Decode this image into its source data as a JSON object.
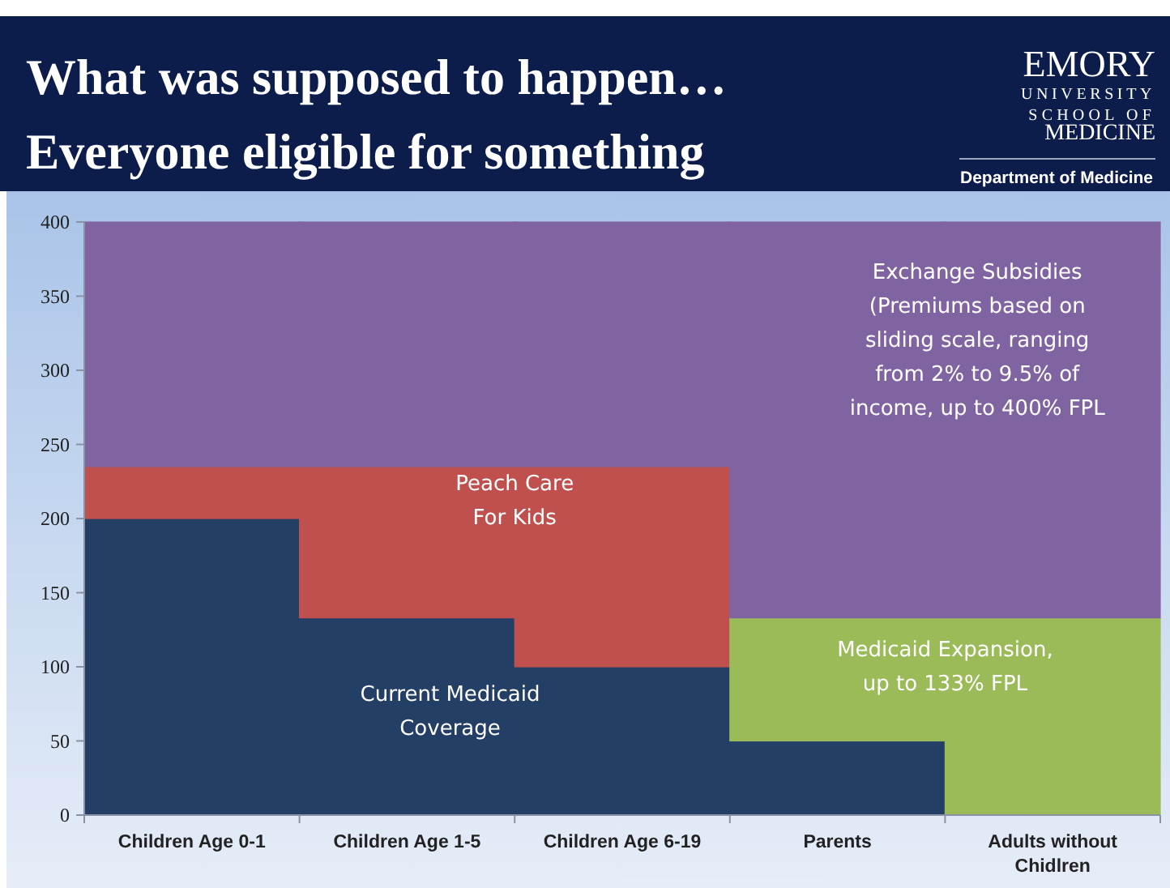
{
  "chart_data": {
    "type": "bar",
    "stacked": true,
    "title": "What was supposed to happen…",
    "subtitle": "Everyone eligible for something",
    "annotations": [
      "EMORY",
      "UNIVERSITY",
      "SCHOOL OF",
      "MEDICINE",
      "Department of Medicine"
    ],
    "categories": [
      "Children Age 0-1",
      "Children Age 1-5",
      "Children Age 6-19",
      "Parents",
      "Adults without Chidlren"
    ],
    "series": [
      {
        "name": "Current Medicaid Coverage",
        "color": "#243f66",
        "values": [
          200,
          133,
          100,
          50,
          0
        ]
      },
      {
        "name": "Peach Care For Kids",
        "color": "#c0504d",
        "values": [
          35,
          102,
          135,
          null,
          null
        ]
      },
      {
        "name": "Medicaid Expansion, up to 133% FPL",
        "color": "#9bbb59",
        "values": [
          null,
          null,
          null,
          83,
          133
        ]
      },
      {
        "name": "Exchange Subsidies (Premiums based on sliding scale, ranging from 2% to 9.5% of income, up to 400% FPL",
        "color": "#8064a2",
        "values": [
          165,
          165,
          165,
          267,
          267
        ]
      }
    ],
    "ylim": [
      0,
      400
    ],
    "yticks": [
      0,
      50,
      100,
      150,
      200,
      250,
      300,
      350,
      400
    ],
    "grid": false
  }
}
